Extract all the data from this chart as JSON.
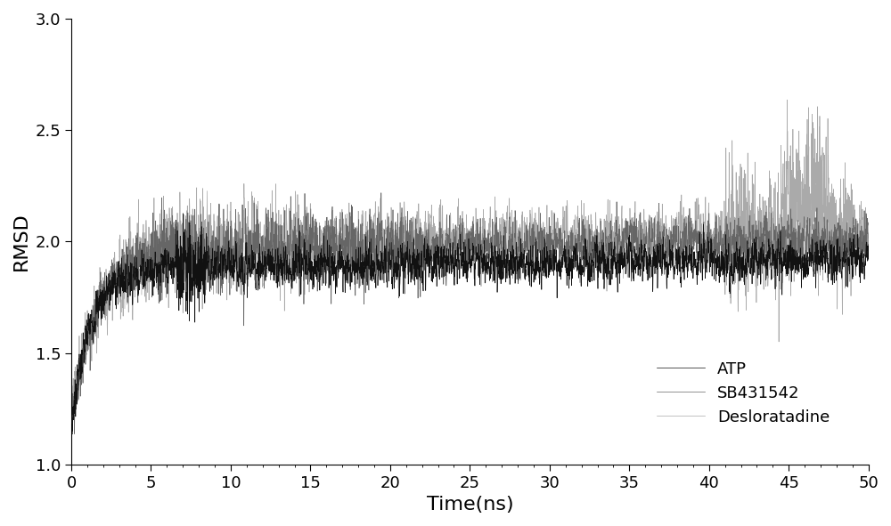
{
  "title": "",
  "xlabel": "Time(ns)",
  "ylabel": "RMSD",
  "xlim": [
    0,
    50
  ],
  "ylim": [
    1,
    3
  ],
  "yticks": [
    1,
    1.5,
    2,
    2.5,
    3
  ],
  "xticks": [
    0,
    5,
    10,
    15,
    20,
    25,
    30,
    35,
    40,
    45,
    50
  ],
  "series": [
    {
      "label": "ATP",
      "color": "#111111",
      "zorder": 3
    },
    {
      "label": "SB431542",
      "color": "#666666",
      "zorder": 2
    },
    {
      "label": "Desloratadine",
      "color": "#aaaaaa",
      "zorder": 1
    }
  ],
  "seed": 7,
  "n_points": 5000,
  "background_color": "#ffffff",
  "figsize": [
    10.0,
    5.91
  ],
  "dpi": 100,
  "linewidth": 0.5,
  "xlabel_fontsize": 16,
  "ylabel_fontsize": 16,
  "tick_fontsize": 13,
  "legend_fontsize": 13,
  "atp": {
    "start": 1.18,
    "plateau": 1.88,
    "rise": 1.2,
    "noise": 0.045,
    "trend": 0.0008
  },
  "sb": {
    "start": 1.18,
    "plateau": 1.95,
    "rise": 1.5,
    "noise": 0.055,
    "trend": 0.001
  },
  "des": {
    "start": 1.25,
    "plateau": 1.98,
    "rise": 1.8,
    "noise": 0.065,
    "trend": 0.0012
  }
}
